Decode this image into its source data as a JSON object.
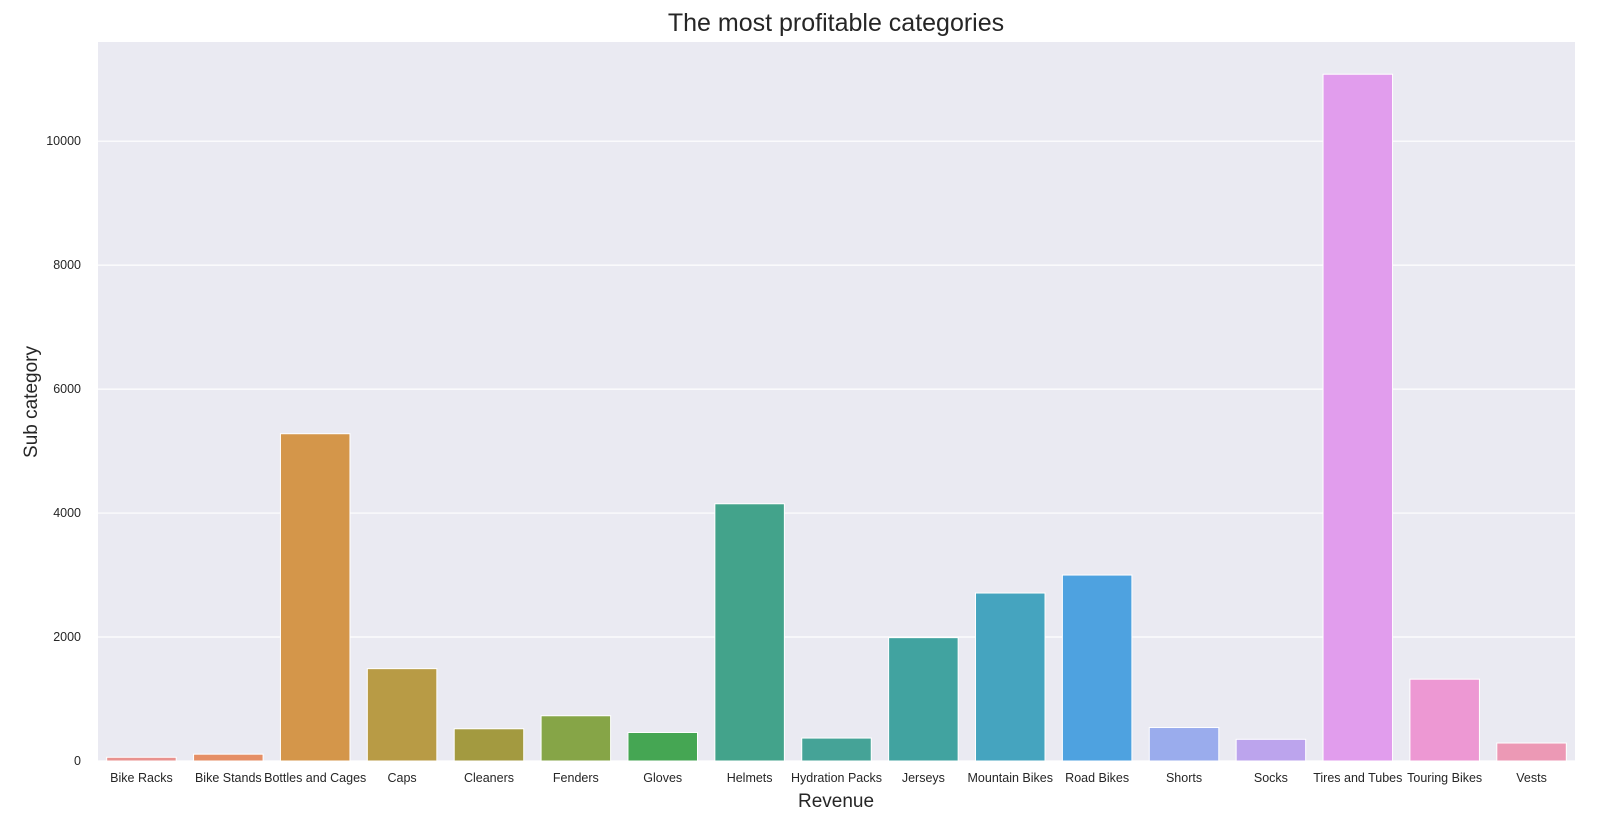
{
  "chart_data": {
    "type": "bar",
    "title": "The most profitable categories",
    "xlabel": "Revenue",
    "ylabel": "Sub category",
    "categories": [
      "Bike Racks",
      "Bike Stands",
      "Bottles and Cages",
      "Caps",
      "Cleaners",
      "Fenders",
      "Gloves",
      "Helmets",
      "Hydration Packs",
      "Jerseys",
      "Mountain Bikes",
      "Road Bikes",
      "Shorts",
      "Socks",
      "Tires and Tubes",
      "Touring Bikes",
      "Vests"
    ],
    "values": [
      60,
      110,
      5280,
      1490,
      520,
      730,
      460,
      4150,
      370,
      1990,
      2710,
      3000,
      540,
      350,
      11080,
      1320,
      290
    ],
    "colors": [
      "#e8928f",
      "#e58e65",
      "#d4964a",
      "#b89b45",
      "#a39a40",
      "#86a547",
      "#45a653",
      "#43a38b",
      "#45a397",
      "#41a3a0",
      "#45a4bf",
      "#4ea2e0",
      "#9aaced",
      "#bca4ed",
      "#e19ded",
      "#ed98d3",
      "#ec99b5"
    ],
    "ylim": [
      0,
      11600
    ],
    "yticks": [
      0,
      2000,
      4000,
      6000,
      8000,
      10000
    ],
    "grid": true,
    "background": "#eaeaf2"
  }
}
